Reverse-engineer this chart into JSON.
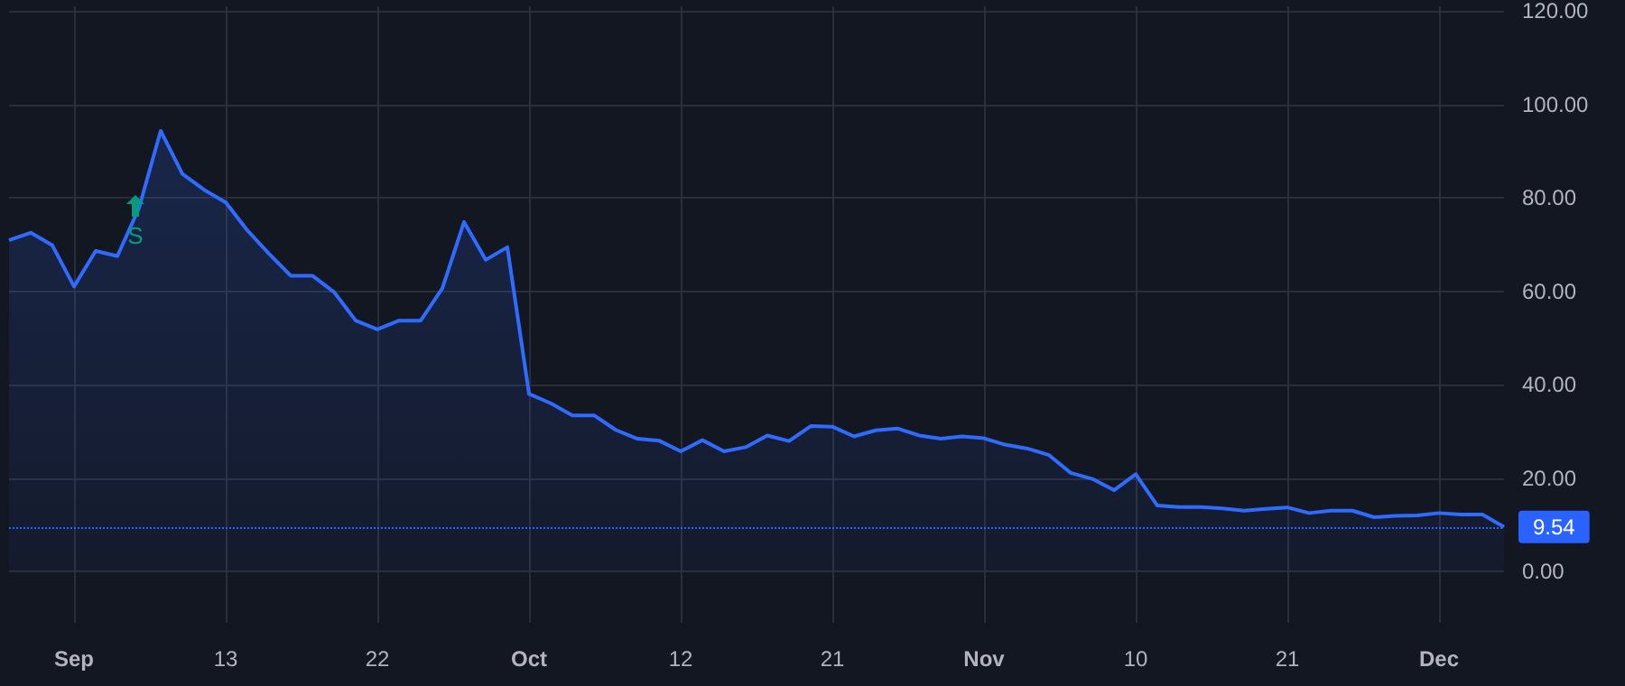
{
  "chart_data": {
    "type": "area",
    "categories": [
      null,
      null,
      null,
      "Sep",
      null,
      null,
      null,
      null,
      null,
      null,
      "13",
      null,
      null,
      null,
      null,
      null,
      null,
      "22",
      null,
      null,
      null,
      null,
      null,
      null,
      "Oct",
      null,
      null,
      null,
      null,
      null,
      null,
      "12",
      null,
      null,
      null,
      null,
      null,
      null,
      "21",
      null,
      null,
      null,
      null,
      null,
      null,
      "Nov",
      null,
      null,
      null,
      null,
      null,
      null,
      "10",
      null,
      null,
      null,
      null,
      null,
      null,
      "21",
      null,
      null,
      null,
      null,
      null,
      null,
      "Dec",
      null,
      null,
      null
    ],
    "series": [
      {
        "color": "#2f6bff",
        "values": [
          70.9,
          72.5,
          69.8,
          61.0,
          68.6,
          67.5,
          77.8,
          94.3,
          85.1,
          81.7,
          79.0,
          73.0,
          68.0,
          63.3,
          63.3,
          59.8,
          53.7,
          51.8,
          53.7,
          53.7,
          60.6,
          74.8,
          66.7,
          69.4,
          38.0,
          36.0,
          33.4,
          33.4,
          30.3,
          28.4,
          28.0,
          25.7,
          28.1,
          25.7,
          26.6,
          29.1,
          27.9,
          31.1,
          31.0,
          28.9,
          30.2,
          30.6,
          29.1,
          28.4,
          28.9,
          28.5,
          27.1,
          26.3,
          24.9,
          21.1,
          19.8,
          17.4,
          20.8,
          14.1,
          13.8,
          13.8,
          13.5,
          13.0,
          13.4,
          13.7,
          12.5,
          13.0,
          13.0,
          11.6,
          11.9,
          12.0,
          12.5,
          12.2,
          12.2,
          9.54
        ]
      }
    ],
    "ylim": [
      -11,
      121
    ],
    "yticks": [
      {
        "value": 0,
        "label": "0.00"
      },
      {
        "value": 20,
        "label": "20.00"
      },
      {
        "value": 40,
        "label": "40.00"
      },
      {
        "value": 60,
        "label": "60.00"
      },
      {
        "value": 80,
        "label": "80.00"
      },
      {
        "value": 100,
        "label": "100.00"
      },
      {
        "value": 120,
        "label": "120.00"
      }
    ],
    "ref_lines": [
      {
        "axis": "y",
        "value": 9.54,
        "label": "9.54",
        "color": "#2962ff",
        "line_style": "dotted"
      }
    ],
    "annotations": [
      "S"
    ],
    "grid": true,
    "marker": "none",
    "line_style": "solid"
  }
}
